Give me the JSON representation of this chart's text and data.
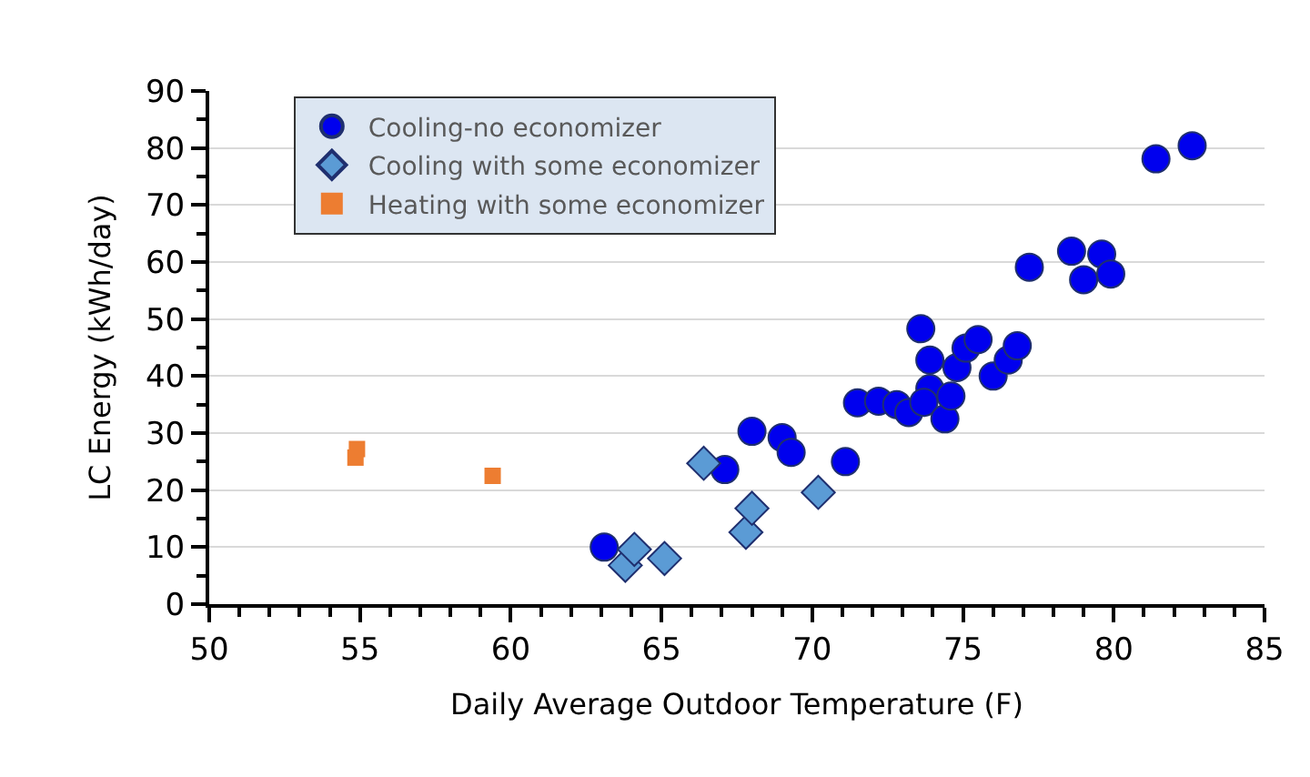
{
  "chart_data": {
    "type": "scatter",
    "xlabel": "Daily Average Outdoor Temperature (F)",
    "ylabel": "LC Energy (kWh/day)",
    "xlim": [
      50,
      85
    ],
    "xticks": [
      50,
      55,
      60,
      65,
      70,
      75,
      80,
      85
    ],
    "ylim": [
      0,
      90
    ],
    "yticks": [
      0,
      10,
      20,
      30,
      40,
      50,
      60,
      70,
      80,
      90
    ],
    "grid": "y",
    "legend": "top left",
    "series": [
      {
        "name": "Cooling-no economizer",
        "color": "#0000ee",
        "marker": "circle",
        "x": [
          63.1,
          67.1,
          68.0,
          69.0,
          69.3,
          71.1,
          71.5,
          72.2,
          72.8,
          73.2,
          73.5,
          73.6,
          73.9,
          73.9,
          73.7,
          74.4,
          74.6,
          74.8,
          75.1,
          75.5,
          76.0,
          76.5,
          76.8,
          77.2,
          78.6,
          79.0,
          79.6,
          79.9,
          81.4,
          82.6
        ],
        "values": [
          10.0,
          23.6,
          30.3,
          29.2,
          26.6,
          25.0,
          35.3,
          35.6,
          35.0,
          33.6,
          null,
          48.3,
          42.8,
          37.8,
          35.4,
          32.5,
          36.5,
          41.5,
          44.9,
          46.4,
          40.0,
          42.8,
          45.3,
          59.1,
          61.9,
          56.9,
          61.4,
          57.9,
          78.1,
          80.4
        ]
      },
      {
        "name": "Cooling with some economizer",
        "color": "#5b9bd5",
        "marker": "diamond",
        "x": [
          63.8,
          64.1,
          65.1,
          66.4,
          67.8,
          68.0,
          70.2
        ],
        "values": [
          6.8,
          9.6,
          8.0,
          24.7,
          12.6,
          16.8,
          19.6
        ]
      },
      {
        "name": "Heating with some economizer",
        "color": "#ed7d31",
        "marker": "square",
        "x": [
          54.85,
          54.9,
          59.4
        ],
        "values": [
          25.7,
          27.2,
          22.5
        ]
      }
    ]
  }
}
